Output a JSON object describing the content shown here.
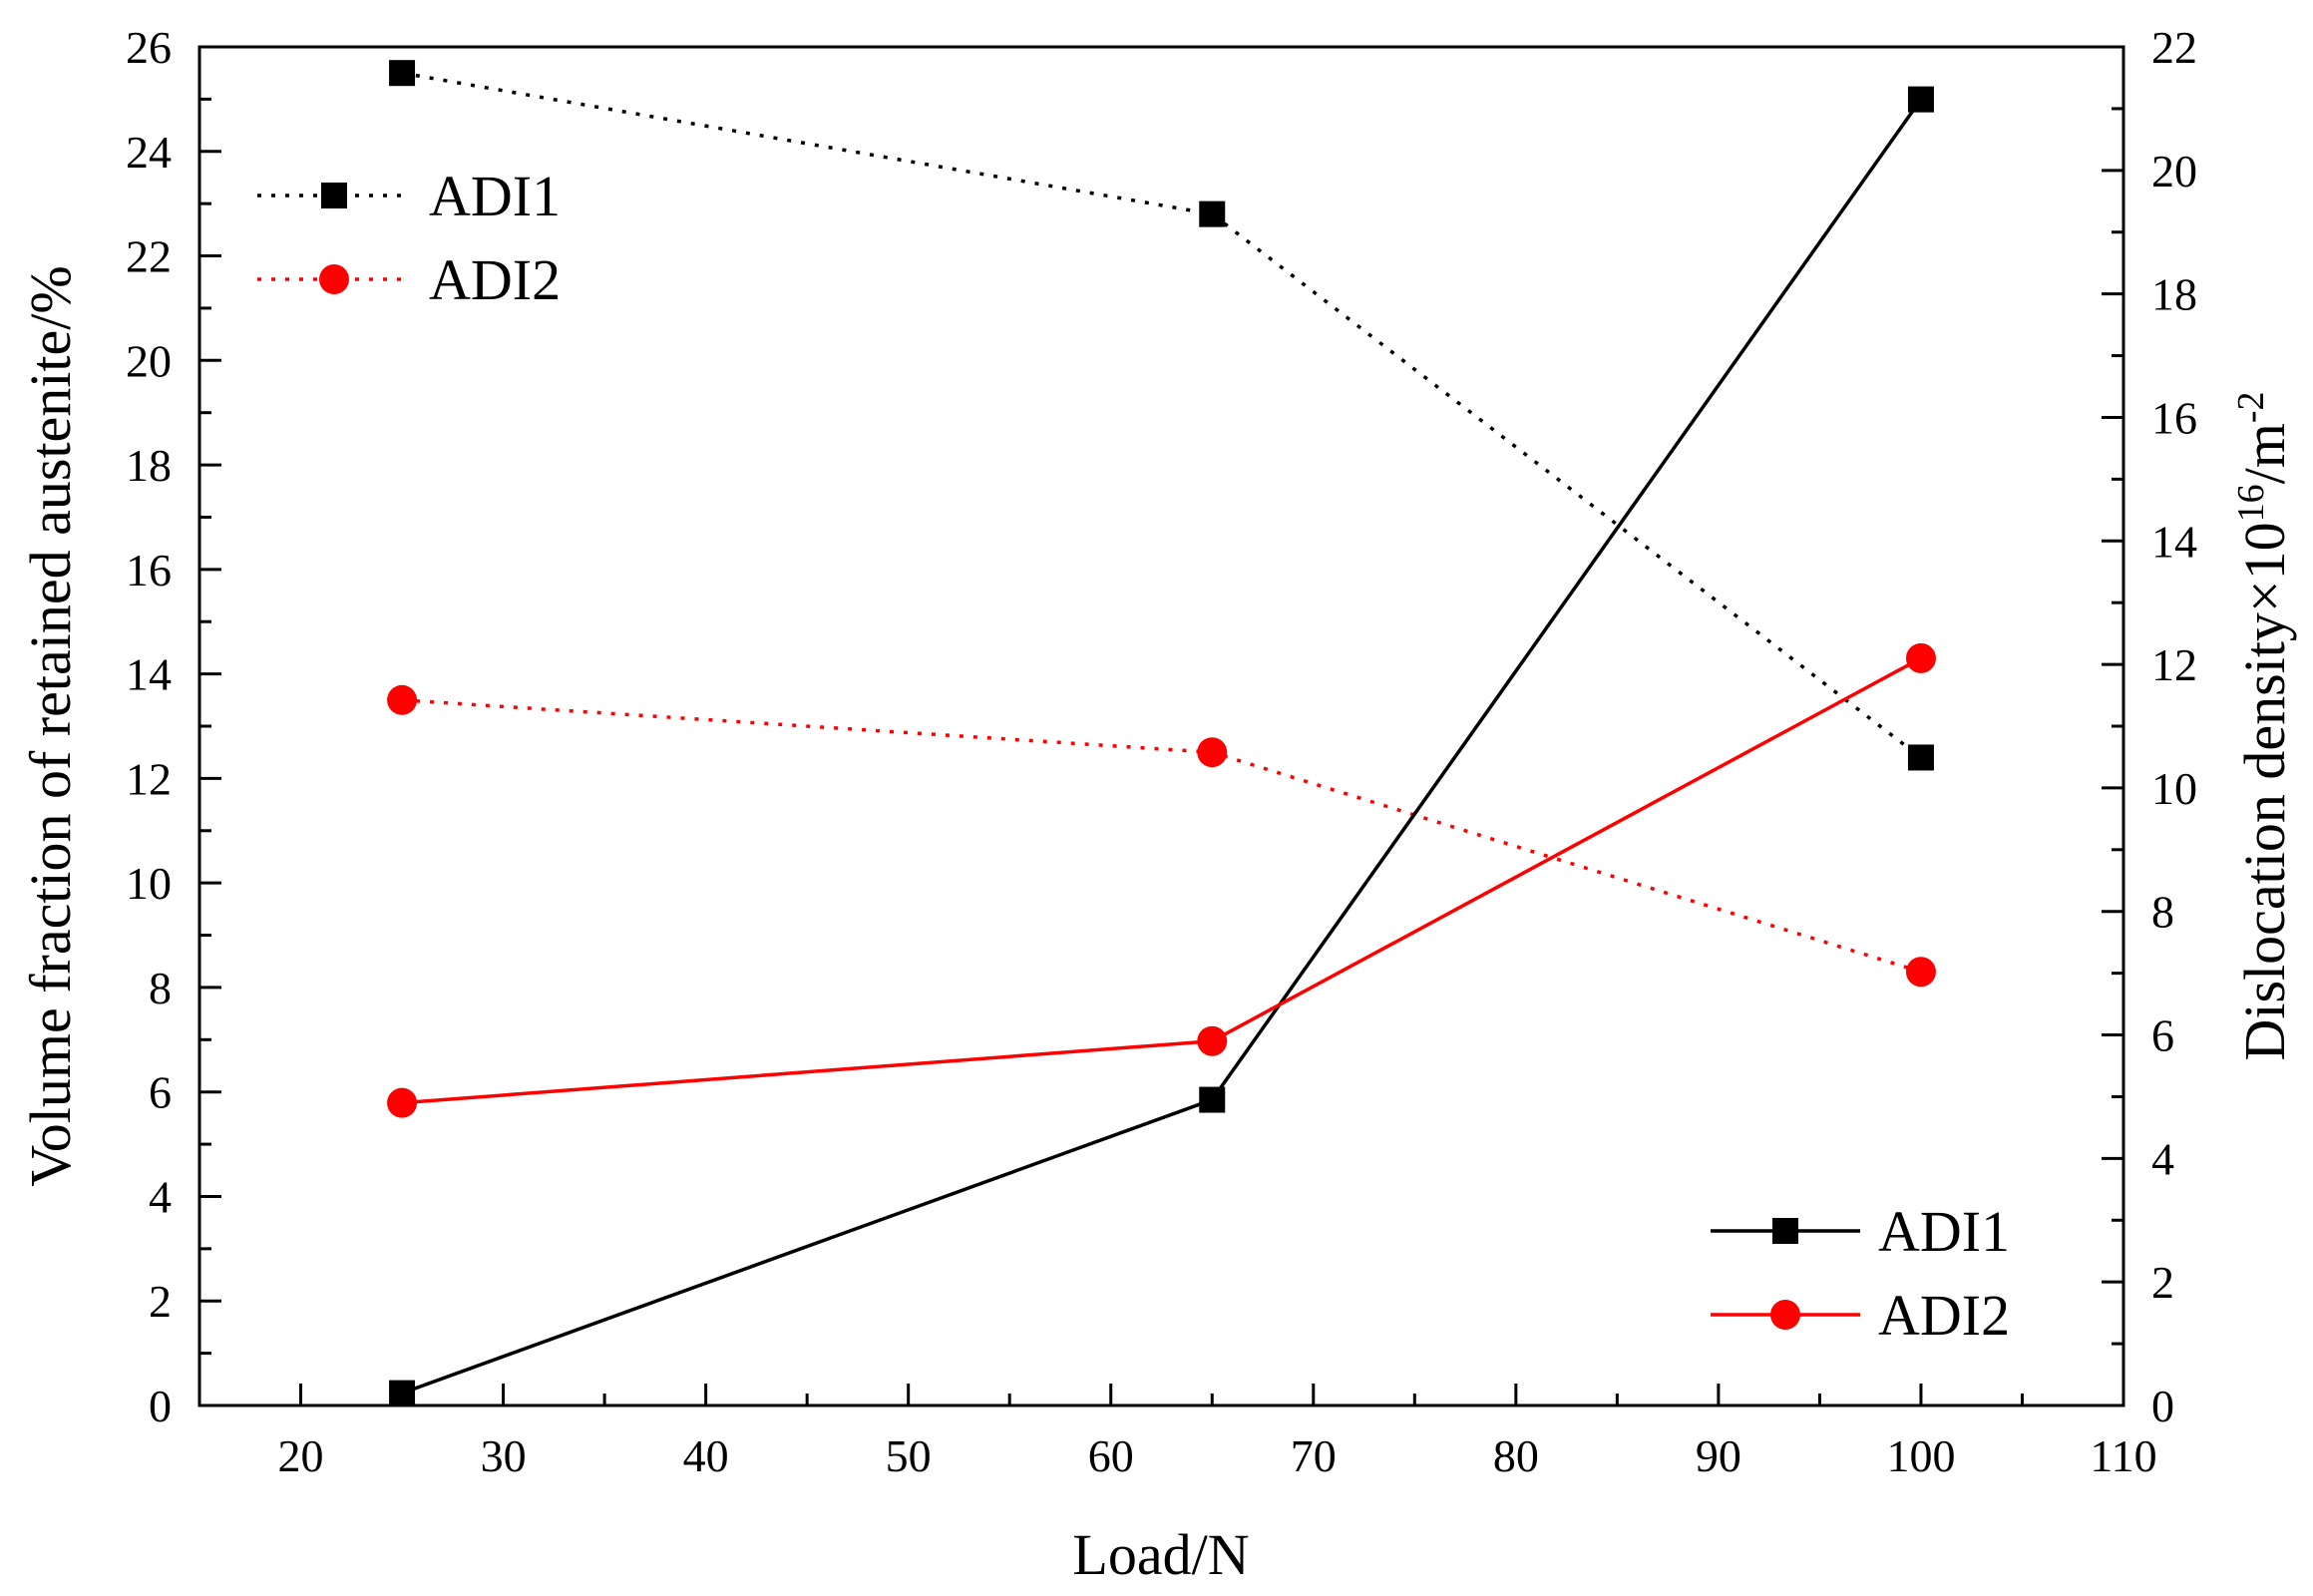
{
  "chart_data": {
    "type": "line",
    "title": "",
    "xlabel": "Load/N",
    "ylabel": "Volume fraction of retained austenite/%",
    "y2label": {
      "prefix": "Dislocation density×10",
      "superscript1": "16",
      "middle": "/m",
      "superscript2": "-2"
    },
    "xlim": [
      15,
      110
    ],
    "ylim": [
      0,
      26
    ],
    "y2lim": [
      0,
      22
    ],
    "x_ticks": [
      "20",
      "30",
      "40",
      "50",
      "60",
      "70",
      "80",
      "90",
      "100",
      "110"
    ],
    "y_ticks": [
      "0",
      "2",
      "4",
      "6",
      "8",
      "10",
      "12",
      "14",
      "16",
      "18",
      "20",
      "22",
      "24",
      "26"
    ],
    "y2_ticks": [
      "0",
      "2",
      "4",
      "6",
      "8",
      "10",
      "12",
      "14",
      "16",
      "18",
      "20",
      "22"
    ],
    "x": [
      25,
      65,
      100
    ],
    "series": [
      {
        "name": "ADI1",
        "axis": "left",
        "style": "dotted",
        "color": "#000000",
        "marker": "square",
        "values": [
          25.5,
          22.8,
          12.4
        ]
      },
      {
        "name": "ADI2",
        "axis": "left",
        "style": "dotted",
        "color": "#ff0000",
        "marker": "circle",
        "values": [
          13.5,
          12.5,
          8.3
        ]
      },
      {
        "name": "ADI1",
        "axis": "right",
        "style": "solid",
        "color": "#000000",
        "marker": "square",
        "values": [
          0.2,
          4.95,
          21.15
        ]
      },
      {
        "name": "ADI2",
        "axis": "right",
        "style": "solid",
        "color": "#ff0000",
        "marker": "circle",
        "values": [
          4.9,
          5.9,
          12.1
        ]
      }
    ],
    "legends": [
      {
        "placement": "top-left",
        "entries": [
          {
            "label": "ADI1",
            "series": 0
          },
          {
            "label": "ADI2",
            "series": 1
          }
        ]
      },
      {
        "placement": "bottom-right",
        "entries": [
          {
            "label": "ADI1",
            "series": 2
          },
          {
            "label": "ADI2",
            "series": 3
          }
        ]
      }
    ]
  }
}
